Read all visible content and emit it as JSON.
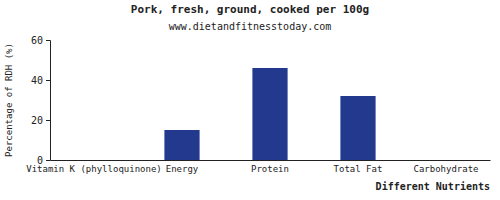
{
  "chart_data": {
    "type": "bar",
    "title": "Pork, fresh, ground, cooked per 100g",
    "subtitle": "www.dietandfitnesstoday.com",
    "x_label": "Different Nutrients",
    "y_label": "Percentage of RDH (%)",
    "categories": [
      "Vitamin K (phylloquinone)",
      "Energy",
      "Protein",
      "Total Fat",
      "Carbohydrate"
    ],
    "values": [
      0,
      15,
      46,
      32,
      0
    ],
    "color": "#22398e",
    "ylim": [
      0,
      60
    ],
    "yticks": [
      0,
      20,
      40,
      60
    ],
    "grid": false
  }
}
